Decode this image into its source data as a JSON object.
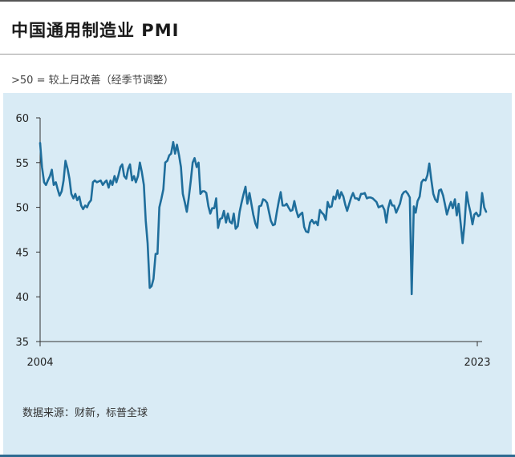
{
  "title": "中国通用制造业 PMI",
  "subtitle": ">50 = 较上月改善（经季节调整）",
  "source": "数据来源：财新，标普全球",
  "colors": {
    "line": "#1f6e9c",
    "panel": "#d9ebf5",
    "axis": "#333333"
  },
  "chart_data": {
    "type": "line",
    "title": "中国通用制造业 PMI",
    "subtitle": ">50 = 较上月改善（经季节调整）",
    "xlabel": "",
    "ylabel": "",
    "x_range": [
      2004.25,
      2023.08
    ],
    "ylim": [
      35,
      60
    ],
    "yticks": [
      35,
      40,
      45,
      50,
      55,
      60
    ],
    "xtick_labels": [
      "2004",
      "2023"
    ],
    "grid": false,
    "legend": "none",
    "series": [
      {
        "points": [
          [
            2004.25,
            57.2
          ],
          [
            2004.33,
            54.5
          ],
          [
            2004.42,
            52.8
          ],
          [
            2004.5,
            52.5
          ],
          [
            2004.58,
            53.0
          ],
          [
            2004.67,
            53.5
          ],
          [
            2004.75,
            54.2
          ],
          [
            2004.83,
            52.5
          ],
          [
            2004.92,
            52.8
          ],
          [
            2005.0,
            52.0
          ],
          [
            2005.08,
            51.3
          ],
          [
            2005.17,
            51.8
          ],
          [
            2005.25,
            53.0
          ],
          [
            2005.33,
            55.2
          ],
          [
            2005.42,
            54.3
          ],
          [
            2005.5,
            53.2
          ],
          [
            2005.58,
            51.5
          ],
          [
            2005.67,
            51.0
          ],
          [
            2005.75,
            51.5
          ],
          [
            2005.83,
            50.8
          ],
          [
            2005.92,
            51.2
          ],
          [
            2006.0,
            50.2
          ],
          [
            2006.08,
            49.8
          ],
          [
            2006.17,
            50.2
          ],
          [
            2006.25,
            50.0
          ],
          [
            2006.33,
            50.5
          ],
          [
            2006.42,
            50.8
          ],
          [
            2006.5,
            52.8
          ],
          [
            2006.58,
            53.0
          ],
          [
            2006.67,
            52.8
          ],
          [
            2006.75,
            52.9
          ],
          [
            2006.83,
            53.0
          ],
          [
            2006.92,
            52.5
          ],
          [
            2007.0,
            52.8
          ],
          [
            2007.08,
            53.0
          ],
          [
            2007.17,
            52.2
          ],
          [
            2007.25,
            53.0
          ],
          [
            2007.33,
            52.5
          ],
          [
            2007.42,
            53.5
          ],
          [
            2007.5,
            52.8
          ],
          [
            2007.58,
            53.5
          ],
          [
            2007.67,
            54.5
          ],
          [
            2007.75,
            54.8
          ],
          [
            2007.83,
            53.5
          ],
          [
            2007.92,
            53.2
          ],
          [
            2008.0,
            54.3
          ],
          [
            2008.08,
            54.8
          ],
          [
            2008.17,
            53.0
          ],
          [
            2008.25,
            53.5
          ],
          [
            2008.33,
            52.8
          ],
          [
            2008.42,
            53.5
          ],
          [
            2008.5,
            55.0
          ],
          [
            2008.58,
            54.0
          ],
          [
            2008.67,
            52.5
          ],
          [
            2008.75,
            48.5
          ],
          [
            2008.83,
            46.0
          ],
          [
            2008.92,
            41.0
          ],
          [
            2009.0,
            41.2
          ],
          [
            2009.08,
            42.0
          ],
          [
            2009.17,
            44.8
          ],
          [
            2009.25,
            44.8
          ],
          [
            2009.33,
            50.0
          ],
          [
            2009.42,
            51.0
          ],
          [
            2009.5,
            52.0
          ],
          [
            2009.58,
            55.0
          ],
          [
            2009.67,
            55.2
          ],
          [
            2009.75,
            55.8
          ],
          [
            2009.83,
            56.0
          ],
          [
            2009.92,
            57.3
          ],
          [
            2010.0,
            56.0
          ],
          [
            2010.08,
            57.0
          ],
          [
            2010.17,
            55.8
          ],
          [
            2010.25,
            54.5
          ],
          [
            2010.33,
            51.5
          ],
          [
            2010.42,
            50.5
          ],
          [
            2010.5,
            49.5
          ],
          [
            2010.58,
            51.0
          ],
          [
            2010.67,
            53.0
          ],
          [
            2010.75,
            55.0
          ],
          [
            2010.83,
            55.5
          ],
          [
            2010.92,
            54.5
          ],
          [
            2011.0,
            55.0
          ],
          [
            2011.08,
            51.5
          ],
          [
            2011.17,
            51.8
          ],
          [
            2011.25,
            51.8
          ],
          [
            2011.33,
            51.6
          ],
          [
            2011.42,
            50.1
          ],
          [
            2011.5,
            49.3
          ],
          [
            2011.58,
            49.9
          ],
          [
            2011.67,
            49.9
          ],
          [
            2011.75,
            51.0
          ],
          [
            2011.83,
            47.7
          ],
          [
            2011.92,
            48.7
          ],
          [
            2012.0,
            48.8
          ],
          [
            2012.08,
            49.6
          ],
          [
            2012.17,
            48.3
          ],
          [
            2012.25,
            49.3
          ],
          [
            2012.33,
            48.4
          ],
          [
            2012.42,
            48.2
          ],
          [
            2012.5,
            49.3
          ],
          [
            2012.58,
            47.6
          ],
          [
            2012.67,
            47.9
          ],
          [
            2012.75,
            49.5
          ],
          [
            2012.83,
            50.5
          ],
          [
            2012.92,
            51.5
          ],
          [
            2013.0,
            52.3
          ],
          [
            2013.08,
            50.4
          ],
          [
            2013.17,
            51.6
          ],
          [
            2013.25,
            50.4
          ],
          [
            2013.33,
            49.2
          ],
          [
            2013.42,
            48.2
          ],
          [
            2013.5,
            47.7
          ],
          [
            2013.58,
            50.1
          ],
          [
            2013.67,
            50.2
          ],
          [
            2013.75,
            50.9
          ],
          [
            2013.83,
            50.8
          ],
          [
            2013.92,
            50.5
          ],
          [
            2014.0,
            49.5
          ],
          [
            2014.08,
            48.5
          ],
          [
            2014.17,
            48.0
          ],
          [
            2014.25,
            48.1
          ],
          [
            2014.33,
            49.4
          ],
          [
            2014.42,
            50.7
          ],
          [
            2014.5,
            51.7
          ],
          [
            2014.58,
            50.2
          ],
          [
            2014.67,
            50.2
          ],
          [
            2014.75,
            50.4
          ],
          [
            2014.83,
            50.0
          ],
          [
            2014.92,
            49.6
          ],
          [
            2015.0,
            49.7
          ],
          [
            2015.08,
            50.7
          ],
          [
            2015.17,
            49.6
          ],
          [
            2015.25,
            48.9
          ],
          [
            2015.33,
            49.2
          ],
          [
            2015.42,
            49.4
          ],
          [
            2015.5,
            47.8
          ],
          [
            2015.58,
            47.3
          ],
          [
            2015.67,
            47.2
          ],
          [
            2015.75,
            48.3
          ],
          [
            2015.83,
            48.6
          ],
          [
            2015.92,
            48.2
          ],
          [
            2016.0,
            48.4
          ],
          [
            2016.08,
            48.0
          ],
          [
            2016.17,
            49.7
          ],
          [
            2016.25,
            49.4
          ],
          [
            2016.33,
            49.2
          ],
          [
            2016.42,
            48.6
          ],
          [
            2016.5,
            50.6
          ],
          [
            2016.58,
            50.0
          ],
          [
            2016.67,
            50.1
          ],
          [
            2016.75,
            51.2
          ],
          [
            2016.83,
            50.9
          ],
          [
            2016.92,
            51.9
          ],
          [
            2017.0,
            51.0
          ],
          [
            2017.08,
            51.7
          ],
          [
            2017.17,
            51.2
          ],
          [
            2017.25,
            50.3
          ],
          [
            2017.33,
            49.6
          ],
          [
            2017.42,
            50.4
          ],
          [
            2017.5,
            51.1
          ],
          [
            2017.58,
            51.6
          ],
          [
            2017.67,
            51.0
          ],
          [
            2017.75,
            51.0
          ],
          [
            2017.83,
            50.8
          ],
          [
            2017.92,
            51.5
          ],
          [
            2018.0,
            51.5
          ],
          [
            2018.08,
            51.6
          ],
          [
            2018.17,
            51.0
          ],
          [
            2018.25,
            51.1
          ],
          [
            2018.33,
            51.1
          ],
          [
            2018.42,
            51.0
          ],
          [
            2018.5,
            50.8
          ],
          [
            2018.58,
            50.6
          ],
          [
            2018.67,
            50.0
          ],
          [
            2018.75,
            50.1
          ],
          [
            2018.83,
            50.2
          ],
          [
            2018.92,
            49.7
          ],
          [
            2019.0,
            48.3
          ],
          [
            2019.08,
            49.9
          ],
          [
            2019.17,
            50.8
          ],
          [
            2019.25,
            50.2
          ],
          [
            2019.33,
            50.2
          ],
          [
            2019.42,
            49.4
          ],
          [
            2019.5,
            49.9
          ],
          [
            2019.58,
            50.4
          ],
          [
            2019.67,
            51.4
          ],
          [
            2019.75,
            51.7
          ],
          [
            2019.83,
            51.8
          ],
          [
            2019.92,
            51.5
          ],
          [
            2020.0,
            51.1
          ],
          [
            2020.08,
            40.3
          ],
          [
            2020.17,
            50.1
          ],
          [
            2020.25,
            49.4
          ],
          [
            2020.33,
            50.7
          ],
          [
            2020.42,
            51.2
          ],
          [
            2020.5,
            52.8
          ],
          [
            2020.58,
            53.1
          ],
          [
            2020.67,
            53.0
          ],
          [
            2020.75,
            53.6
          ],
          [
            2020.83,
            54.9
          ],
          [
            2020.92,
            53.0
          ],
          [
            2021.0,
            51.5
          ],
          [
            2021.08,
            50.9
          ],
          [
            2021.17,
            50.6
          ],
          [
            2021.25,
            51.9
          ],
          [
            2021.33,
            52.0
          ],
          [
            2021.42,
            51.3
          ],
          [
            2021.5,
            50.3
          ],
          [
            2021.58,
            49.2
          ],
          [
            2021.67,
            50.0
          ],
          [
            2021.75,
            50.6
          ],
          [
            2021.83,
            49.9
          ],
          [
            2021.92,
            50.9
          ],
          [
            2022.0,
            49.1
          ],
          [
            2022.08,
            50.4
          ],
          [
            2022.17,
            48.1
          ],
          [
            2022.25,
            46.0
          ],
          [
            2022.33,
            48.1
          ],
          [
            2022.42,
            51.7
          ],
          [
            2022.5,
            50.4
          ],
          [
            2022.58,
            49.5
          ],
          [
            2022.67,
            48.1
          ],
          [
            2022.75,
            49.2
          ],
          [
            2022.83,
            49.4
          ],
          [
            2022.92,
            49.0
          ],
          [
            2023.0,
            49.2
          ],
          [
            2023.08,
            51.6
          ],
          [
            2023.17,
            50.0
          ],
          [
            2023.25,
            49.5
          ]
        ]
      }
    ]
  }
}
